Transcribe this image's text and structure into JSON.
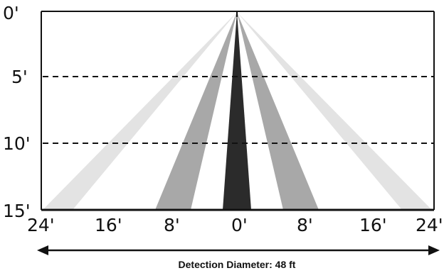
{
  "diagram": {
    "y_ticks": [
      "0'",
      "5'",
      "10'",
      "15'"
    ],
    "x_ticks": [
      "24'",
      "16'",
      "8'",
      "0'",
      "8'",
      "16'",
      "24'"
    ],
    "caption": "Detection Diameter: 48 ft",
    "colors": {
      "outer_beam": "#e3e3e3",
      "middle_beam": "#a8a8a8",
      "center_beam": "#2b2b2b",
      "frame": "#111111",
      "dashed": "#111111"
    }
  }
}
